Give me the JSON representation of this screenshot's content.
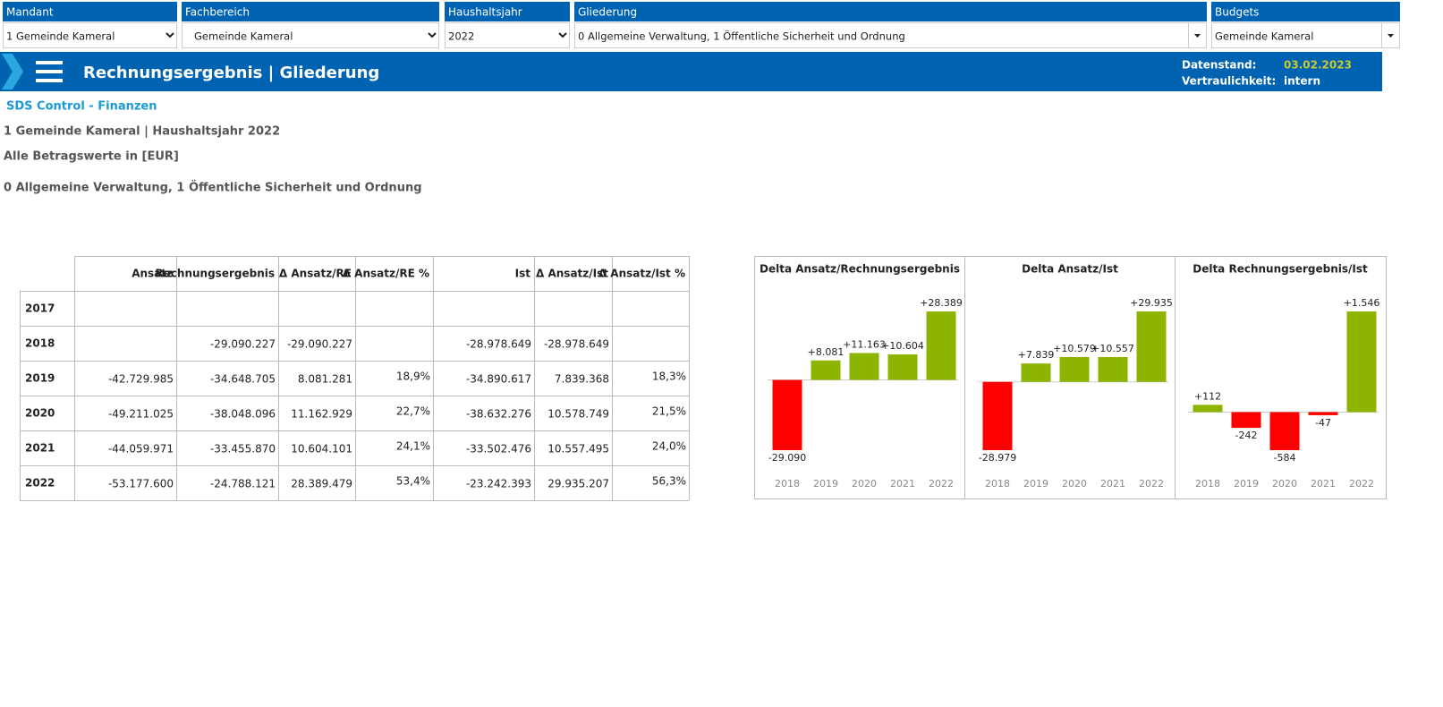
{
  "filters": [
    {
      "label": "Mandant",
      "value": "1 Gemeinde Kameral"
    },
    {
      "label": "Fachbereich",
      "value": "Gemeinde Kameral"
    },
    {
      "label": "Haushaltsjahr",
      "value": "2022"
    },
    {
      "label": "Gliederung",
      "value": "0 Allgemeine Verwaltung, 1 Öffentliche Sicherheit und Ordnung"
    },
    {
      "label": "Budgets",
      "value": "Gemeinde Kameral"
    }
  ],
  "header": {
    "title": "Rechnungsergebnis | Gliederung",
    "datenstand_label": "Datenstand:",
    "datenstand_value": "03.02.2023",
    "vertraulichkeit_label": "Vertraulichkeit:",
    "vertraulichkeit_value": "intern"
  },
  "info": {
    "brand": "SDS Control - Finanzen",
    "subtitle": "1 Gemeinde Kameral | Haushaltsjahr 2022",
    "units": "Alle Betragswerte in [EUR]",
    "gliederung": "0 Allgemeine Verwaltung, 1 Öffentliche Sicherheit und Ordnung"
  },
  "table": {
    "columns": [
      "Ansatz",
      "Rechnungsergebnis",
      "Δ Ansatz/RE",
      "Δ Ansatz/RE %",
      "Ist",
      "Δ  Ansatz/Ist",
      "Δ Ansatz/Ist %"
    ],
    "rows": [
      {
        "year": "2017",
        "cells": [
          null,
          null,
          null,
          null,
          null,
          null,
          null
        ]
      },
      {
        "year": "2018",
        "cells": [
          null,
          "-29.090.227",
          "-29.090.227",
          null,
          "-28.978.649",
          "-28.978.649",
          null
        ]
      },
      {
        "year": "2019",
        "cells": [
          "-42.729.985",
          "-34.648.705",
          "8.081.281",
          "18,9%",
          "-34.890.617",
          "7.839.368",
          "18,3%"
        ]
      },
      {
        "year": "2020",
        "cells": [
          "-49.211.025",
          "-38.048.096",
          "11.162.929",
          "22,7%",
          "-38.632.276",
          "10.578.749",
          "21,5%"
        ]
      },
      {
        "year": "2021",
        "cells": [
          "-44.059.971",
          "-33.455.870",
          "10.604.101",
          "24,1%",
          "-33.502.476",
          "10.557.495",
          "24,0%"
        ]
      },
      {
        "year": "2022",
        "cells": [
          "-53.177.600",
          "-24.788.121",
          "28.389.479",
          "53,4%",
          "-23.242.393",
          "29.935.207",
          "56,3%"
        ]
      }
    ]
  },
  "chart_data": [
    {
      "type": "bar",
      "title": "Delta Ansatz/Rechnungsergebnis",
      "categories": [
        "2018",
        "2019",
        "2020",
        "2021",
        "2022"
      ],
      "values": [
        -29090,
        8081,
        11163,
        10604,
        28389
      ],
      "value_labels": [
        "-29.090",
        "+8.081",
        "+11.163",
        "+10.604",
        "+28.389"
      ],
      "positive_color": "#8cb400",
      "negative_color": "#ff0000"
    },
    {
      "type": "bar",
      "title": "Delta Ansatz/Ist",
      "categories": [
        "2018",
        "2019",
        "2020",
        "2021",
        "2022"
      ],
      "values": [
        -28979,
        7839,
        10579,
        10557,
        29935
      ],
      "value_labels": [
        "-28.979",
        "+7.839",
        "+10.579",
        "+10.557",
        "+29.935"
      ],
      "positive_color": "#8cb400",
      "negative_color": "#ff0000"
    },
    {
      "type": "bar",
      "title": "Delta Rechnungsergebnis/Ist",
      "categories": [
        "2018",
        "2019",
        "2020",
        "2021",
        "2022"
      ],
      "values": [
        112,
        -242,
        -584,
        -47,
        1546
      ],
      "value_labels": [
        "+112",
        "-242",
        "-584",
        "-47",
        "+1.546"
      ],
      "positive_color": "#8cb400",
      "negative_color": "#ff0000"
    }
  ]
}
